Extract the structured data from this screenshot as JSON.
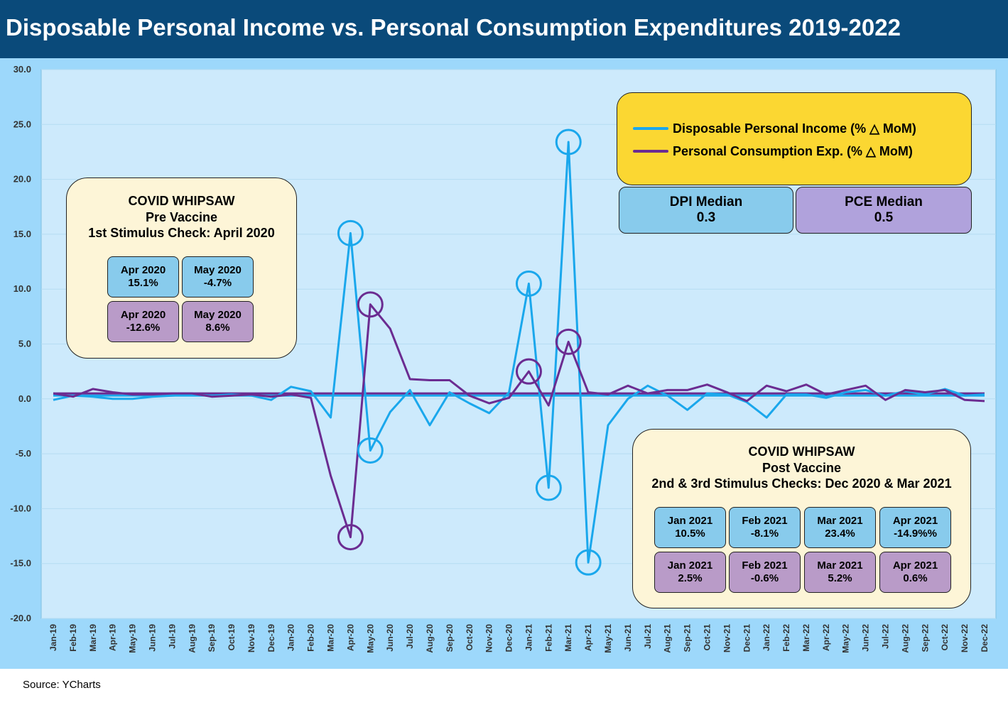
{
  "title": "Disposable Personal Income vs. Personal Consumption Expenditures 2019-2022",
  "source": "Source:  YCharts",
  "colors": {
    "title_bg": "#0a4a7a",
    "outer_bg": "#9dd8fb",
    "plot_bg": "#cdeafc",
    "dpi": "#1aa7ec",
    "pce": "#6b2c91",
    "legend_bg": "#fbd732",
    "panel_bg": "#fdf5d7",
    "dpi_cell": "#88cbec",
    "pce_cell": "#b99bc8"
  },
  "chart_data": {
    "type": "line",
    "x": [
      "Jan-19",
      "Feb-19",
      "Mar-19",
      "Apr-19",
      "May-19",
      "Jun-19",
      "Jul-19",
      "Aug-19",
      "Sep-19",
      "Oct-19",
      "Nov-19",
      "Dec-19",
      "Jan-20",
      "Feb-20",
      "Mar-20",
      "Apr-20",
      "May-20",
      "Jun-20",
      "Jul-20",
      "Aug-20",
      "Sep-20",
      "Oct-20",
      "Nov-20",
      "Dec-20",
      "Jan-21",
      "Feb-21",
      "Mar-21",
      "Apr-21",
      "May-21",
      "Jun-21",
      "Jul-21",
      "Aug-21",
      "Sep-21",
      "Oct-21",
      "Nov-21",
      "Dec-21",
      "Jan-22",
      "Feb-22",
      "Mar-22",
      "Apr-22",
      "May-22",
      "Jun-22",
      "Jul-22",
      "Aug-22",
      "Sep-22",
      "Oct-22",
      "Nov-22",
      "Dec-22"
    ],
    "ylim": [
      -20,
      30
    ],
    "yticks": [
      "30.0",
      "25.0",
      "20.0",
      "15.0",
      "10.0",
      "5.0",
      "0.0",
      "-5.0",
      "-10.0",
      "-15.0",
      "-20.0"
    ],
    "ytick_values": [
      30,
      25,
      20,
      15,
      10,
      5,
      0,
      -5,
      -10,
      -15,
      -20
    ],
    "grid": true,
    "series": [
      {
        "name": "Disposable Personal Income (% △ MoM)",
        "values": [
          -0.1,
          0.3,
          0.2,
          0.0,
          0.0,
          0.2,
          0.3,
          0.4,
          0.3,
          0.4,
          0.3,
          -0.1,
          1.1,
          0.7,
          -1.7,
          15.1,
          -4.7,
          -1.2,
          0.8,
          -2.4,
          0.6,
          -0.4,
          -1.3,
          0.6,
          10.5,
          -8.1,
          23.4,
          -14.9,
          -2.4,
          0.0,
          1.2,
          0.3,
          -1.0,
          0.5,
          0.4,
          -0.3,
          -1.7,
          0.4,
          0.4,
          0.1,
          0.6,
          0.8,
          0.3,
          0.7,
          0.4,
          0.9,
          0.3,
          0.4
        ]
      },
      {
        "name": "Personal Consumption Exp. (% △ MoM)",
        "values": [
          0.5,
          0.2,
          0.9,
          0.6,
          0.4,
          0.4,
          0.5,
          0.5,
          0.2,
          0.3,
          0.4,
          0.2,
          0.4,
          0.1,
          -7.0,
          -12.6,
          8.6,
          6.4,
          1.8,
          1.7,
          1.7,
          0.3,
          -0.4,
          0.1,
          2.5,
          -0.6,
          5.2,
          0.6,
          0.4,
          1.2,
          0.5,
          0.8,
          0.8,
          1.3,
          0.6,
          -0.2,
          1.2,
          0.7,
          1.3,
          0.4,
          0.8,
          1.2,
          -0.1,
          0.8,
          0.6,
          0.8,
          -0.1,
          -0.2
        ]
      }
    ],
    "medians": {
      "dpi": 0.3,
      "pce": 0.5
    },
    "highlight_circles": {
      "dpi": [
        "Apr-20",
        "May-20",
        "Jan-21",
        "Feb-21",
        "Mar-21",
        "Apr-21"
      ],
      "pce": [
        "Apr-20",
        "May-20",
        "Jan-21",
        "Mar-21"
      ]
    }
  },
  "legend": {
    "dpi_label": "Disposable Personal Income (% △ MoM)",
    "pce_label": "Personal Consumption Exp. (% △ MoM)"
  },
  "medians_boxes": {
    "dpi_title": "DPI Median",
    "dpi_value": "0.3",
    "pce_title": "PCE Median",
    "pce_value": "0.5"
  },
  "pre_vaccine": {
    "line1": "COVID WHIPSAW",
    "line2": "Pre Vaccine",
    "line3": "1st Stimulus Check: April 2020",
    "dpi_cells": [
      {
        "month": "Apr 2020",
        "value": "15.1%"
      },
      {
        "month": "May 2020",
        "value": "-4.7%"
      }
    ],
    "pce_cells": [
      {
        "month": "Apr 2020",
        "value": "-12.6%"
      },
      {
        "month": "May 2020",
        "value": "8.6%"
      }
    ]
  },
  "post_vaccine": {
    "line1": "COVID WHIPSAW",
    "line2": "Post Vaccine",
    "line3": "2nd & 3rd Stimulus Checks: Dec 2020 & Mar 2021",
    "dpi_cells": [
      {
        "month": "Jan 2021",
        "value": "10.5%"
      },
      {
        "month": "Feb 2021",
        "value": "-8.1%"
      },
      {
        "month": "Mar 2021",
        "value": "23.4%"
      },
      {
        "month": "Apr 2021",
        "value": "-14.9%%"
      }
    ],
    "pce_cells": [
      {
        "month": "Jan 2021",
        "value": "2.5%"
      },
      {
        "month": "Feb 2021",
        "value": "-0.6%"
      },
      {
        "month": "Mar 2021",
        "value": "5.2%"
      },
      {
        "month": "Apr 2021",
        "value": "0.6%"
      }
    ]
  }
}
